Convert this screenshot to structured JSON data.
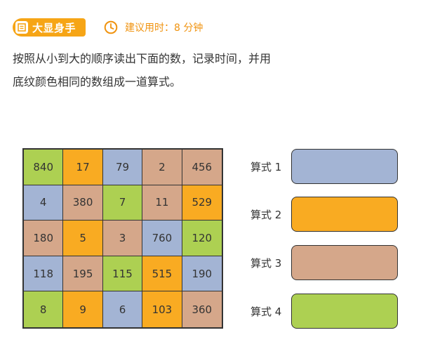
{
  "header": {
    "badge_label": "大显身手",
    "badge_icon": "list-icon",
    "timer_icon": "clock-icon",
    "timer_text": "建议用时：8 分钟"
  },
  "instruction": {
    "line1": "按照从小到大的顺序读出下面的数，记录时间，并用",
    "line2": "底纹颜色相同的数组成一道算式。"
  },
  "colors": {
    "blue": "#a3b4d4",
    "orange": "#f9ab22",
    "tan": "#d5a78a",
    "green": "#add052",
    "accent": "#f6a516"
  },
  "grid": [
    [
      {
        "v": "840",
        "c": "green"
      },
      {
        "v": "17",
        "c": "orange"
      },
      {
        "v": "79",
        "c": "blue"
      },
      {
        "v": "2",
        "c": "tan"
      },
      {
        "v": "456",
        "c": "tan"
      }
    ],
    [
      {
        "v": "4",
        "c": "blue"
      },
      {
        "v": "380",
        "c": "tan"
      },
      {
        "v": "7",
        "c": "green"
      },
      {
        "v": "11",
        "c": "tan"
      },
      {
        "v": "529",
        "c": "orange"
      }
    ],
    [
      {
        "v": "180",
        "c": "tan"
      },
      {
        "v": "5",
        "c": "orange"
      },
      {
        "v": "3",
        "c": "tan"
      },
      {
        "v": "760",
        "c": "blue"
      },
      {
        "v": "120",
        "c": "green"
      }
    ],
    [
      {
        "v": "118",
        "c": "blue"
      },
      {
        "v": "195",
        "c": "tan"
      },
      {
        "v": "115",
        "c": "green"
      },
      {
        "v": "515",
        "c": "orange"
      },
      {
        "v": "190",
        "c": "blue"
      }
    ],
    [
      {
        "v": "8",
        "c": "green"
      },
      {
        "v": "9",
        "c": "orange"
      },
      {
        "v": "6",
        "c": "blue"
      },
      {
        "v": "103",
        "c": "orange"
      },
      {
        "v": "360",
        "c": "tan"
      }
    ]
  ],
  "formulas": [
    {
      "label": "算式 1",
      "color": "blue"
    },
    {
      "label": "算式 2",
      "color": "orange"
    },
    {
      "label": "算式 3",
      "color": "tan"
    },
    {
      "label": "算式 4",
      "color": "green"
    }
  ]
}
